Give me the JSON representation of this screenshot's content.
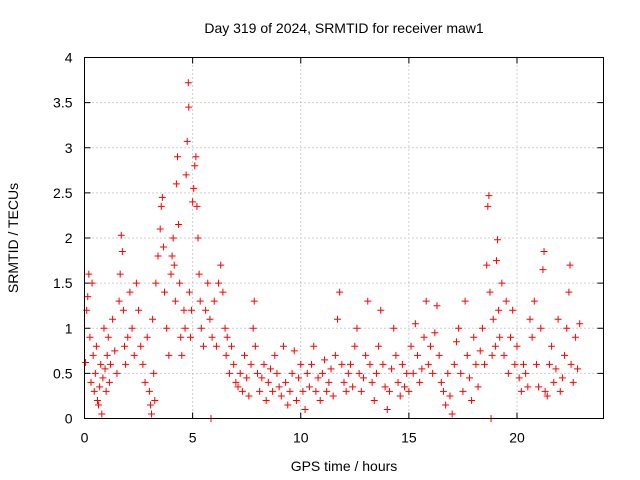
{
  "chart_data": {
    "type": "scatter",
    "title": "Day 319 of 2024, SRMTID for receiver maw1",
    "xlabel": "GPS time / hours",
    "ylabel": "SRMTID / TECUs",
    "xlim": [
      0,
      24
    ],
    "ylim": [
      0,
      4
    ],
    "x_ticks": [
      "0",
      "5",
      "10",
      "15",
      "20"
    ],
    "y_ticks": [
      "0",
      "0.5",
      "1",
      "1.5",
      "2",
      "2.5",
      "3",
      "3.5",
      "4"
    ],
    "grid": true,
    "marker": "+",
    "color": "#ff0000",
    "series": [
      {
        "name": "SRMTID",
        "points": [
          [
            0.05,
            0.62
          ],
          [
            0.1,
            1.2
          ],
          [
            0.15,
            1.35
          ],
          [
            0.2,
            1.6
          ],
          [
            0.25,
            0.9
          ],
          [
            0.3,
            0.4
          ],
          [
            0.35,
            1.5
          ],
          [
            0.4,
            0.7
          ],
          [
            0.45,
            0.3
          ],
          [
            0.5,
            0.5
          ],
          [
            0.55,
            0.8
          ],
          [
            0.6,
            0.2
          ],
          [
            0.65,
            0.15
          ],
          [
            0.7,
            0.35
          ],
          [
            0.75,
            0.6
          ],
          [
            0.8,
            0.05
          ],
          [
            0.85,
            0.45
          ],
          [
            0.9,
            1.0
          ],
          [
            0.95,
            0.55
          ],
          [
            1.0,
            0.3
          ],
          [
            1.05,
            0.7
          ],
          [
            1.1,
            0.9
          ],
          [
            1.15,
            0.4
          ],
          [
            1.2,
            0.6
          ],
          [
            1.3,
            1.1
          ],
          [
            1.4,
            0.75
          ],
          [
            1.5,
            0.5
          ],
          [
            1.6,
            1.3
          ],
          [
            1.65,
            1.6
          ],
          [
            1.7,
            2.03
          ],
          [
            1.75,
            1.85
          ],
          [
            1.8,
            1.2
          ],
          [
            1.85,
            0.8
          ],
          [
            1.9,
            0.6
          ],
          [
            2.0,
            0.9
          ],
          [
            2.1,
            1.4
          ],
          [
            2.2,
            1.0
          ],
          [
            2.3,
            0.7
          ],
          [
            2.4,
            1.5
          ],
          [
            2.5,
            1.2
          ],
          [
            2.6,
            0.8
          ],
          [
            2.7,
            0.6
          ],
          [
            2.8,
            0.4
          ],
          [
            2.9,
            0.9
          ],
          [
            3.0,
            0.3
          ],
          [
            3.05,
            0.15
          ],
          [
            3.1,
            0.05
          ],
          [
            3.15,
            1.1
          ],
          [
            3.2,
            0.5
          ],
          [
            3.25,
            0.2
          ],
          [
            3.3,
            1.5
          ],
          [
            3.4,
            1.8
          ],
          [
            3.5,
            2.1
          ],
          [
            3.55,
            2.35
          ],
          [
            3.6,
            2.45
          ],
          [
            3.65,
            1.9
          ],
          [
            3.7,
            1.4
          ],
          [
            3.8,
            1.0
          ],
          [
            3.9,
            0.7
          ],
          [
            4.0,
            1.6
          ],
          [
            4.05,
            1.8
          ],
          [
            4.1,
            2.0
          ],
          [
            4.15,
            1.7
          ],
          [
            4.2,
            1.3
          ],
          [
            4.25,
            2.6
          ],
          [
            4.3,
            2.9
          ],
          [
            4.35,
            2.15
          ],
          [
            4.4,
            1.5
          ],
          [
            4.45,
            0.9
          ],
          [
            4.5,
            0.7
          ],
          [
            4.6,
            1.2
          ],
          [
            4.65,
            1.0
          ],
          [
            4.7,
            2.7
          ],
          [
            4.75,
            3.07
          ],
          [
            4.8,
            3.72
          ],
          [
            4.82,
            3.45
          ],
          [
            4.85,
            1.4
          ],
          [
            4.9,
            0.9
          ],
          [
            4.95,
            1.2
          ],
          [
            5.0,
            2.4
          ],
          [
            5.05,
            2.55
          ],
          [
            5.1,
            2.8
          ],
          [
            5.15,
            2.9
          ],
          [
            5.2,
            2.35
          ],
          [
            5.25,
            2.0
          ],
          [
            5.3,
            1.6
          ],
          [
            5.35,
            1.3
          ],
          [
            5.4,
            1.0
          ],
          [
            5.5,
            0.8
          ],
          [
            5.6,
            1.2
          ],
          [
            5.7,
            1.5
          ],
          [
            5.8,
            1.1
          ],
          [
            5.85,
            0.0
          ],
          [
            5.9,
            0.9
          ],
          [
            6.0,
            1.3
          ],
          [
            6.1,
            0.8
          ],
          [
            6.2,
            1.5
          ],
          [
            6.3,
            1.7
          ],
          [
            6.4,
            1.4
          ],
          [
            6.5,
            1.0
          ],
          [
            6.55,
            0.7
          ],
          [
            6.6,
            0.9
          ],
          [
            6.7,
            0.5
          ],
          [
            6.8,
            0.8
          ],
          [
            6.9,
            0.6
          ],
          [
            7.0,
            0.4
          ],
          [
            7.1,
            0.35
          ],
          [
            7.2,
            0.5
          ],
          [
            7.3,
            0.3
          ],
          [
            7.4,
            0.7
          ],
          [
            7.5,
            0.45
          ],
          [
            7.6,
            0.25
          ],
          [
            7.7,
            0.6
          ],
          [
            7.8,
            1.0
          ],
          [
            7.85,
            1.3
          ],
          [
            7.9,
            0.8
          ],
          [
            8.0,
            0.5
          ],
          [
            8.1,
            0.3
          ],
          [
            8.2,
            0.45
          ],
          [
            8.3,
            0.6
          ],
          [
            8.4,
            0.2
          ],
          [
            8.5,
            0.4
          ],
          [
            8.6,
            0.55
          ],
          [
            8.7,
            0.3
          ],
          [
            8.8,
            0.7
          ],
          [
            8.9,
            0.5
          ],
          [
            9.0,
            0.35
          ],
          [
            9.1,
            0.25
          ],
          [
            9.2,
            0.8
          ],
          [
            9.3,
            0.4
          ],
          [
            9.4,
            0.15
          ],
          [
            9.5,
            0.3
          ],
          [
            9.6,
            0.5
          ],
          [
            9.7,
            0.75
          ],
          [
            9.8,
            0.2
          ],
          [
            9.9,
            0.45
          ],
          [
            10.0,
            0.6
          ],
          [
            10.1,
            0.3
          ],
          [
            10.2,
            0.1
          ],
          [
            10.3,
            0.5
          ],
          [
            10.4,
            0.35
          ],
          [
            10.5,
            0.6
          ],
          [
            10.6,
            0.8
          ],
          [
            10.7,
            0.3
          ],
          [
            10.8,
            0.45
          ],
          [
            10.9,
            0.2
          ],
          [
            11.0,
            0.5
          ],
          [
            11.1,
            0.65
          ],
          [
            11.2,
            0.3
          ],
          [
            11.3,
            0.4
          ],
          [
            11.4,
            0.55
          ],
          [
            11.5,
            0.25
          ],
          [
            11.6,
            0.7
          ],
          [
            11.7,
            1.1
          ],
          [
            11.8,
            1.4
          ],
          [
            11.9,
            0.6
          ],
          [
            12.0,
            0.4
          ],
          [
            12.1,
            0.3
          ],
          [
            12.2,
            0.5
          ],
          [
            12.3,
            0.6
          ],
          [
            12.4,
            0.35
          ],
          [
            12.5,
            0.8
          ],
          [
            12.6,
            1.0
          ],
          [
            12.7,
            0.5
          ],
          [
            12.8,
            0.3
          ],
          [
            12.9,
            0.45
          ],
          [
            13.0,
            0.7
          ],
          [
            13.1,
            1.3
          ],
          [
            13.2,
            0.6
          ],
          [
            13.3,
            0.4
          ],
          [
            13.4,
            0.2
          ],
          [
            13.5,
            0.5
          ],
          [
            13.6,
            0.8
          ],
          [
            13.7,
            1.2
          ],
          [
            13.8,
            0.6
          ],
          [
            13.9,
            0.35
          ],
          [
            14.0,
            0.1
          ],
          [
            14.1,
            0.3
          ],
          [
            14.2,
            0.55
          ],
          [
            14.3,
            1.0
          ],
          [
            14.4,
            0.7
          ],
          [
            14.5,
            0.4
          ],
          [
            14.6,
            0.25
          ],
          [
            14.7,
            0.6
          ],
          [
            14.8,
            0.35
          ],
          [
            14.9,
            0.5
          ],
          [
            15.0,
            0.3
          ],
          [
            15.1,
            0.8
          ],
          [
            15.2,
            0.5
          ],
          [
            15.3,
            1.05
          ],
          [
            15.4,
            0.7
          ],
          [
            15.5,
            0.4
          ],
          [
            15.6,
            0.55
          ],
          [
            15.7,
            0.9
          ],
          [
            15.8,
            1.3
          ],
          [
            15.9,
            0.6
          ],
          [
            16.0,
            0.8
          ],
          [
            16.1,
            0.5
          ],
          [
            16.2,
            0.95
          ],
          [
            16.3,
            1.25
          ],
          [
            16.4,
            0.7
          ],
          [
            16.5,
            0.4
          ],
          [
            16.6,
            0.3
          ],
          [
            16.7,
            0.15
          ],
          [
            16.8,
            0.5
          ],
          [
            16.9,
            0.25
          ],
          [
            17.0,
            0.05
          ],
          [
            17.1,
            0.6
          ],
          [
            17.2,
            0.85
          ],
          [
            17.3,
            1.0
          ],
          [
            17.4,
            0.5
          ],
          [
            17.5,
            0.3
          ],
          [
            17.6,
            1.3
          ],
          [
            17.7,
            0.7
          ],
          [
            17.8,
            0.45
          ],
          [
            17.9,
            0.2
          ],
          [
            18.0,
            0.9
          ],
          [
            18.1,
            0.6
          ],
          [
            18.2,
            0.35
          ],
          [
            18.3,
            0.75
          ],
          [
            18.4,
            1.0
          ],
          [
            18.5,
            0.6
          ],
          [
            18.6,
            1.7
          ],
          [
            18.65,
            2.35
          ],
          [
            18.7,
            2.47
          ],
          [
            18.75,
            1.4
          ],
          [
            18.8,
            0.0
          ],
          [
            18.85,
            0.7
          ],
          [
            18.9,
            1.1
          ],
          [
            19.0,
            0.8
          ],
          [
            19.05,
            1.75
          ],
          [
            19.1,
            1.98
          ],
          [
            19.15,
            1.2
          ],
          [
            19.2,
            0.9
          ],
          [
            19.3,
            1.5
          ],
          [
            19.4,
            0.7
          ],
          [
            19.5,
            1.3
          ],
          [
            19.6,
            0.5
          ],
          [
            19.7,
            0.9
          ],
          [
            19.8,
            1.2
          ],
          [
            19.9,
            0.6
          ],
          [
            20.0,
            0.8
          ],
          [
            20.1,
            0.45
          ],
          [
            20.2,
            0.3
          ],
          [
            20.3,
            0.6
          ],
          [
            20.4,
            0.5
          ],
          [
            20.5,
            0.35
          ],
          [
            20.6,
            1.1
          ],
          [
            20.7,
            0.9
          ],
          [
            20.8,
            1.3
          ],
          [
            20.9,
            0.6
          ],
          [
            21.0,
            0.35
          ],
          [
            21.1,
            1.0
          ],
          [
            21.2,
            1.65
          ],
          [
            21.25,
            1.85
          ],
          [
            21.3,
            0.3
          ],
          [
            21.4,
            0.25
          ],
          [
            21.5,
            0.6
          ],
          [
            21.6,
            0.8
          ],
          [
            21.7,
            0.4
          ],
          [
            21.8,
            0.55
          ],
          [
            21.9,
            1.1
          ],
          [
            22.0,
            0.3
          ],
          [
            22.1,
            0.45
          ],
          [
            22.2,
            0.7
          ],
          [
            22.3,
            1.0
          ],
          [
            22.4,
            1.4
          ],
          [
            22.45,
            1.7
          ],
          [
            22.5,
            0.6
          ],
          [
            22.6,
            0.4
          ],
          [
            22.7,
            0.9
          ],
          [
            22.8,
            0.55
          ],
          [
            22.9,
            1.05
          ]
        ]
      }
    ]
  }
}
